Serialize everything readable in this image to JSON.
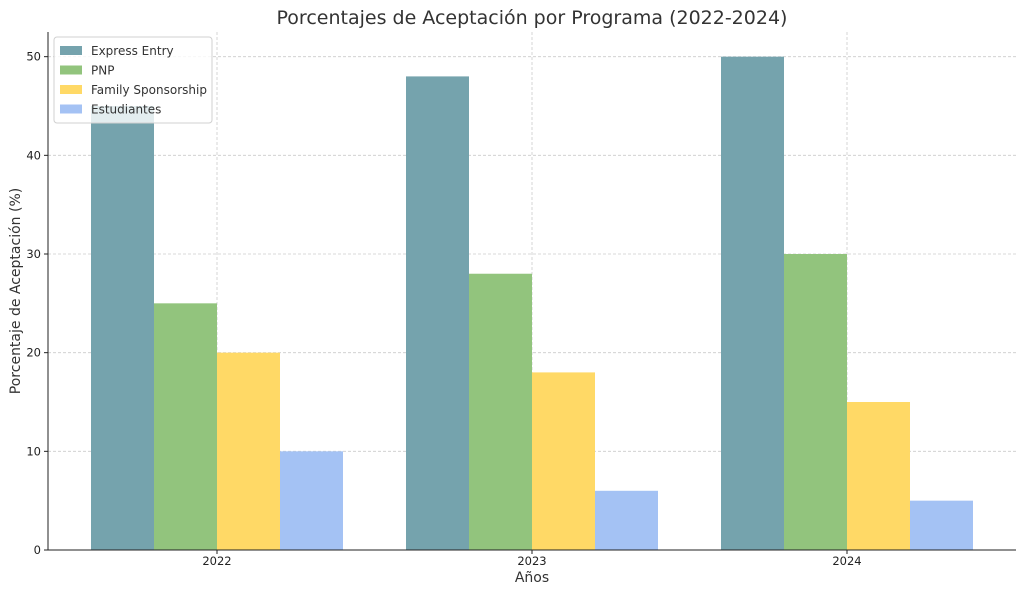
{
  "chart_data": {
    "type": "bar",
    "title": "Porcentajes de Aceptación por Programa (2022-2024)",
    "xlabel": "Años",
    "ylabel": "Porcentaje de Aceptación (%)",
    "categories": [
      "2022",
      "2023",
      "2024"
    ],
    "ylim": [
      0,
      52.5
    ],
    "yticks": [
      0,
      10,
      20,
      30,
      40,
      50
    ],
    "grid": true,
    "legend_position": "top-left",
    "series": [
      {
        "name": "Express Entry",
        "values": [
          45,
          48,
          50
        ],
        "color": "#75a3ad"
      },
      {
        "name": "PNP",
        "values": [
          25,
          28,
          30
        ],
        "color": "#92c47d"
      },
      {
        "name": "Family Sponsorship",
        "values": [
          20,
          18,
          15
        ],
        "color": "#ffd966"
      },
      {
        "name": "Estudiantes",
        "values": [
          10,
          6,
          5
        ],
        "color": "#a4c2f4"
      }
    ]
  }
}
